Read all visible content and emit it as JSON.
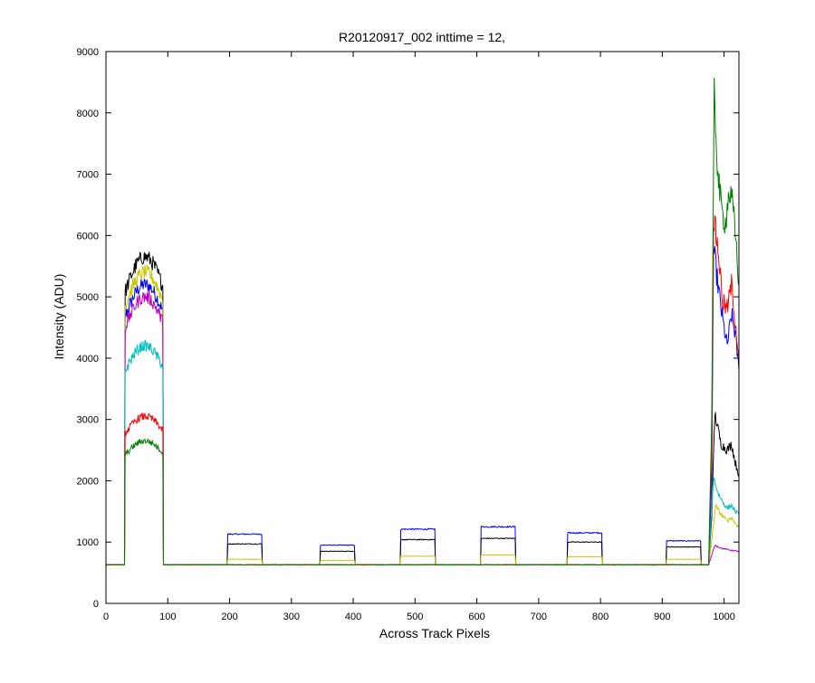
{
  "chart_data": {
    "type": "line",
    "title": "R20120917_002 inttime = 12,",
    "xlabel": "Across Track Pixels",
    "ylabel": "Intensity (ADU)",
    "xlim": [
      0,
      1024
    ],
    "ylim": [
      0,
      9000
    ],
    "xticks": [
      0,
      100,
      200,
      300,
      400,
      500,
      600,
      700,
      800,
      900,
      1000
    ],
    "yticks": [
      0,
      1000,
      2000,
      3000,
      4000,
      5000,
      6000,
      7000,
      8000,
      9000
    ],
    "grid": false,
    "baseline": 630,
    "series": [
      {
        "color": "#0000ff",
        "plateaus": [
          {
            "x0": 30,
            "x1": 93,
            "level": 5200
          },
          {
            "x0": 196,
            "x1": 253,
            "level": 1130
          },
          {
            "x0": 346,
            "x1": 403,
            "level": 950
          },
          {
            "x0": 476,
            "x1": 533,
            "level": 1210
          },
          {
            "x0": 606,
            "x1": 663,
            "level": 1250
          },
          {
            "x0": 746,
            "x1": 803,
            "level": 1150
          },
          {
            "x0": 906,
            "x1": 963,
            "level": 1020
          }
        ],
        "right_edge": [
          [
            975,
            630
          ],
          [
            980,
            2000
          ],
          [
            983,
            5800
          ],
          [
            990,
            5200
          ],
          [
            998,
            4600
          ],
          [
            1005,
            4200
          ],
          [
            1012,
            4700
          ],
          [
            1018,
            4400
          ],
          [
            1024,
            3800
          ]
        ]
      },
      {
        "color": "#000000",
        "plateaus": [
          {
            "x0": 30,
            "x1": 93,
            "level": 5650
          },
          {
            "x0": 196,
            "x1": 253,
            "level": 970
          },
          {
            "x0": 346,
            "x1": 403,
            "level": 850
          },
          {
            "x0": 476,
            "x1": 533,
            "level": 1040
          },
          {
            "x0": 606,
            "x1": 663,
            "level": 1060
          },
          {
            "x0": 746,
            "x1": 803,
            "level": 1000
          },
          {
            "x0": 906,
            "x1": 963,
            "level": 920
          }
        ],
        "right_edge": [
          [
            975,
            630
          ],
          [
            980,
            1400
          ],
          [
            985,
            3100
          ],
          [
            995,
            2600
          ],
          [
            1005,
            2500
          ],
          [
            1012,
            2600
          ],
          [
            1018,
            2300
          ],
          [
            1024,
            2100
          ]
        ]
      },
      {
        "color": "#c8c800",
        "plateaus": [
          {
            "x0": 30,
            "x1": 93,
            "level": 5400
          },
          {
            "x0": 196,
            "x1": 253,
            "level": 720
          },
          {
            "x0": 346,
            "x1": 403,
            "level": 700
          },
          {
            "x0": 476,
            "x1": 533,
            "level": 770
          },
          {
            "x0": 606,
            "x1": 663,
            "level": 790
          },
          {
            "x0": 746,
            "x1": 803,
            "level": 760
          },
          {
            "x0": 906,
            "x1": 963,
            "level": 720
          }
        ],
        "right_edge": [
          [
            975,
            630
          ],
          [
            982,
            1200
          ],
          [
            986,
            1600
          ],
          [
            995,
            1450
          ],
          [
            1005,
            1350
          ],
          [
            1012,
            1400
          ],
          [
            1018,
            1300
          ],
          [
            1024,
            1250
          ]
        ]
      },
      {
        "color": "#bf00bf",
        "plateaus": [
          {
            "x0": 30,
            "x1": 93,
            "level": 5000
          }
        ],
        "right_edge": [
          [
            975,
            630
          ],
          [
            985,
            950
          ],
          [
            995,
            900
          ],
          [
            1005,
            880
          ],
          [
            1015,
            860
          ],
          [
            1024,
            850
          ]
        ]
      },
      {
        "color": "#00bfbf",
        "plateaus": [
          {
            "x0": 30,
            "x1": 93,
            "level": 4200
          }
        ],
        "right_edge": [
          [
            975,
            630
          ],
          [
            983,
            2050
          ],
          [
            990,
            1800
          ],
          [
            998,
            1650
          ],
          [
            1005,
            1550
          ],
          [
            1012,
            1600
          ],
          [
            1018,
            1500
          ],
          [
            1024,
            1450
          ]
        ]
      },
      {
        "color": "#ff0000",
        "plateaus": [
          {
            "x0": 30,
            "x1": 93,
            "level": 3050
          }
        ],
        "right_edge": [
          [
            975,
            630
          ],
          [
            980,
            2500
          ],
          [
            983,
            6300
          ],
          [
            990,
            5800
          ],
          [
            998,
            4900
          ],
          [
            1005,
            4800
          ],
          [
            1012,
            5200
          ],
          [
            1018,
            4600
          ],
          [
            1024,
            4000
          ]
        ]
      },
      {
        "color": "#007f00",
        "plateaus": [
          {
            "x0": 30,
            "x1": 93,
            "level": 2650
          }
        ],
        "right_edge": [
          [
            975,
            630
          ],
          [
            980,
            3000
          ],
          [
            984,
            8300
          ],
          [
            990,
            7000
          ],
          [
            996,
            6400
          ],
          [
            1002,
            6200
          ],
          [
            1008,
            6700
          ],
          [
            1014,
            6500
          ],
          [
            1020,
            5800
          ],
          [
            1024,
            5200
          ]
        ]
      }
    ]
  }
}
